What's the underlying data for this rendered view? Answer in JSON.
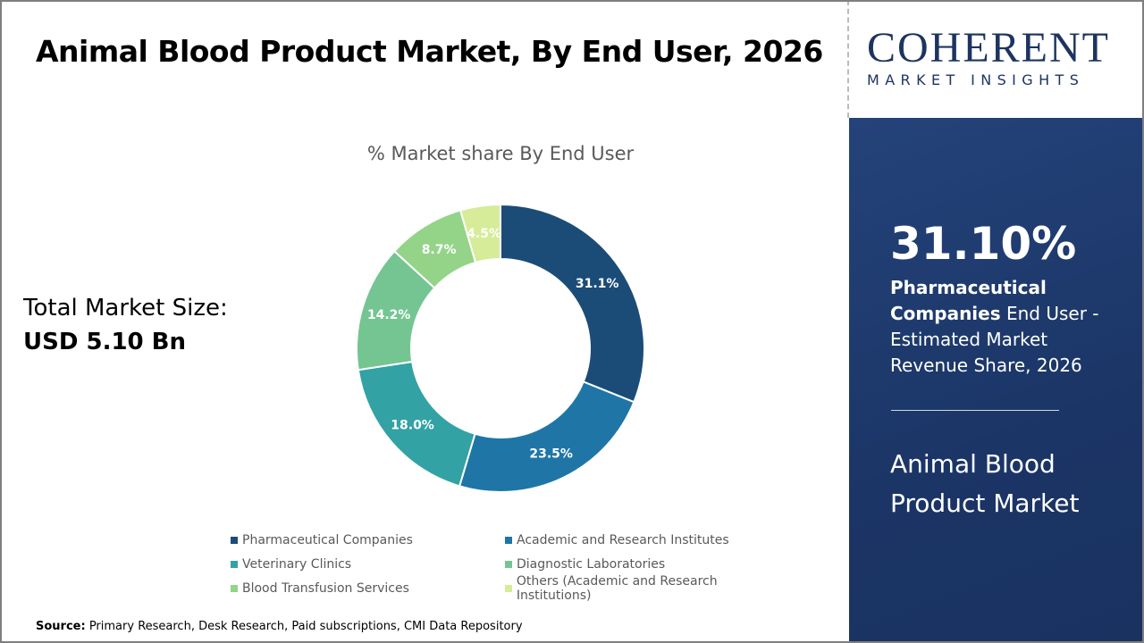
{
  "header": {
    "title": "Animal Blood Product Market, By End User, 2026"
  },
  "total": {
    "label": "Total Market Size:",
    "value": "USD 5.10 Bn"
  },
  "logo": {
    "text_top": "COHERENT",
    "text_bottom": "MARKET INSIGHTS"
  },
  "panel": {
    "percent": "31.10%",
    "highlight": "Pharmaceutical Companies",
    "description": " End User - Estimated Market Revenue Share, 2026",
    "market_name": "Animal Blood Product Market"
  },
  "source": {
    "label": "Source:",
    "text": " Primary Research, Desk Research, Paid subscriptions, CMI Data Repository"
  },
  "chart_data": {
    "type": "pie",
    "donut": true,
    "title": "% Market share By End User",
    "categories": [
      "Pharmaceutical Companies",
      "Academic and Research Institutes",
      "Veterinary Clinics",
      "Diagnostic Laboratories",
      "Blood Transfusion Services",
      "Others (Academic and Research Institutions)"
    ],
    "values": [
      31.1,
      23.5,
      18.0,
      14.2,
      8.7,
      4.5
    ],
    "labels": [
      "31.1%",
      "23.5%",
      "18.0%",
      "14.2%",
      "8.7%",
      "4.5%"
    ],
    "colors": [
      "#1b4c78",
      "#1f76a6",
      "#33a2a4",
      "#74c592",
      "#93d488",
      "#d6ec98"
    ],
    "legend_position": "bottom"
  }
}
